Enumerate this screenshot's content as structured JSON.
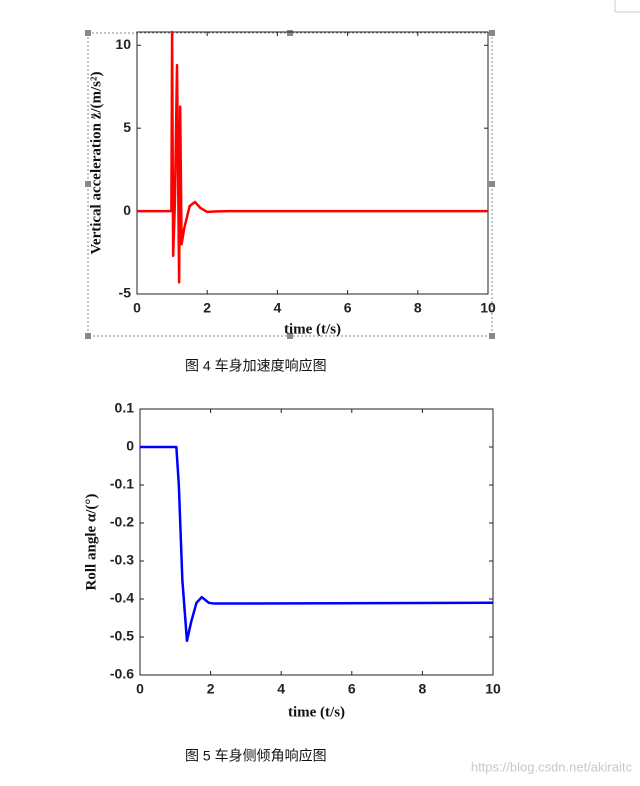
{
  "chart_data": [
    {
      "type": "line",
      "xlabel": "time (t/s)",
      "ylabel": "Vertical acceleration z̈/(m/s²)",
      "x": [
        0,
        0.98,
        1.0,
        1.03,
        1.08,
        1.14,
        1.2,
        1.23,
        1.27,
        1.35,
        1.5,
        1.65,
        1.8,
        2.0,
        2.3,
        2.6,
        10
      ],
      "series": [
        {
          "color": "#ff0000",
          "values": [
            0,
            0,
            10.8,
            -2.7,
            0.5,
            8.8,
            -4.3,
            6.3,
            -2.0,
            -1.0,
            0.3,
            0.55,
            0.2,
            -0.05,
            -0.02,
            0,
            0
          ]
        }
      ],
      "xlim": [
        0,
        10
      ],
      "ylim": [
        -5,
        10.8
      ],
      "xticks": [
        0,
        2,
        4,
        6,
        8,
        10
      ],
      "yticks": [
        -5,
        0,
        5,
        10
      ]
    },
    {
      "type": "line",
      "xlabel": "time (t/s)",
      "ylabel": "Roll angle α/(°)",
      "x": [
        0,
        1.03,
        1.1,
        1.2,
        1.33,
        1.45,
        1.6,
        1.75,
        1.95,
        2.1,
        10
      ],
      "series": [
        {
          "color": "#0000ff",
          "values": [
            0,
            0,
            -0.1,
            -0.35,
            -0.51,
            -0.46,
            -0.41,
            -0.395,
            -0.41,
            -0.412,
            -0.41
          ]
        }
      ],
      "xlim": [
        0,
        10
      ],
      "ylim": [
        -0.6,
        0.1
      ],
      "xticks": [
        0,
        2,
        4,
        6,
        8,
        10
      ],
      "yticks": [
        -0.6,
        -0.5,
        -0.4,
        -0.3,
        -0.2,
        -0.1,
        0,
        0.1
      ]
    }
  ],
  "captions": [
    "图 4  车身加速度响应图",
    "图 5  车身侧倾角响应图"
  ],
  "watermark": "https://blog.csdn.net/akiraitc"
}
